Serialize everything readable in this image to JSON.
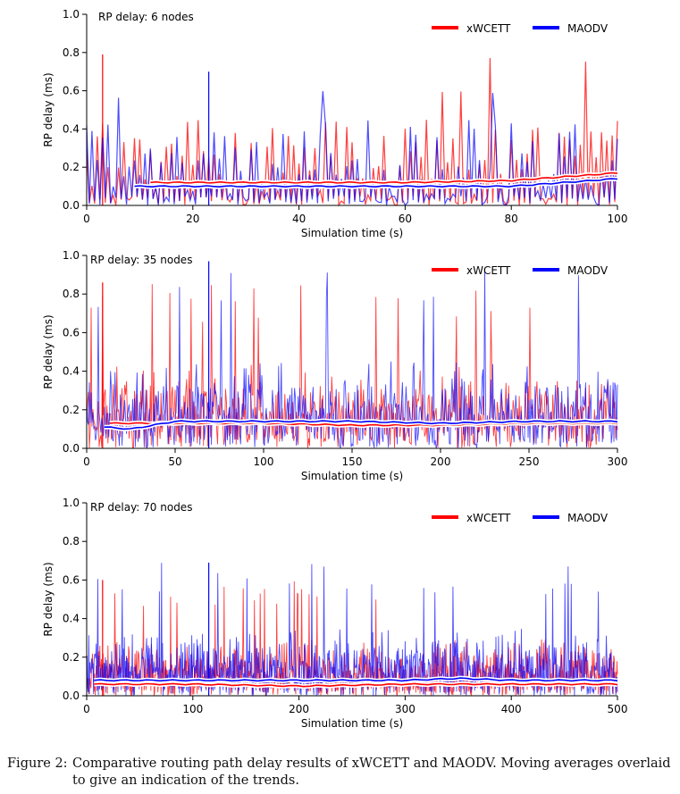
{
  "chart_data": [
    {
      "type": "line",
      "title": "RP delay: 6 nodes",
      "xlabel": "Simulation time (s)",
      "ylabel": "RP delay (ms)",
      "xlim": [
        0,
        100
      ],
      "ylim": [
        0,
        1.0
      ],
      "xticks": [
        0,
        20,
        40,
        60,
        80,
        100
      ],
      "yticks": [
        "0.0",
        "0.2",
        "0.4",
        "0.6",
        "0.8",
        "1.0"
      ],
      "legend": [
        "xWCETT",
        "MAODV"
      ],
      "legend_position": "top-right",
      "grid": false,
      "series": [
        {
          "name": "xWCETT",
          "color": "#ff0000",
          "spike_peak": 0.79,
          "typical_max": 0.45,
          "moving_average": {
            "x": [
              12,
              20,
              40,
              60,
              80,
              90,
              100
            ],
            "y": [
              0.12,
              0.12,
              0.12,
              0.12,
              0.13,
              0.15,
              0.17
            ]
          }
        },
        {
          "name": "MAODV",
          "color": "#0000ff",
          "spike_peak": 0.7,
          "typical_max": 0.45,
          "moving_average": {
            "x": [
              9,
              20,
              40,
              60,
              80,
              90,
              100
            ],
            "y": [
              0.1,
              0.1,
              0.1,
              0.1,
              0.1,
              0.12,
              0.14
            ]
          }
        }
      ]
    },
    {
      "type": "line",
      "title": "RP delay: 35 nodes",
      "xlabel": "Simulation time (s)",
      "ylabel": "RP delay (ms)",
      "xlim": [
        0,
        300
      ],
      "ylim": [
        0,
        1.0
      ],
      "xticks": [
        0,
        50,
        100,
        150,
        200,
        250,
        300
      ],
      "yticks": [
        "0.0",
        "0.2",
        "0.4",
        "0.6",
        "0.8",
        "1.0"
      ],
      "legend": [
        "xWCETT",
        "MAODV"
      ],
      "legend_position": "top-right",
      "grid": false,
      "series": [
        {
          "name": "xWCETT",
          "color": "#ff0000",
          "spike_peak": 0.86,
          "typical_max": 0.45,
          "moving_average": {
            "x": [
              13,
              50,
              100,
              150,
              200,
              250,
              300
            ],
            "y": [
              0.13,
              0.13,
              0.13,
              0.12,
              0.12,
              0.13,
              0.13
            ]
          }
        },
        {
          "name": "MAODV",
          "color": "#0000ff",
          "spike_peak": 0.97,
          "typical_max": 0.5,
          "moving_average": {
            "x": [
              10,
              25,
              50,
              100,
              150,
              200,
              250,
              300
            ],
            "y": [
              0.11,
              0.1,
              0.14,
              0.14,
              0.14,
              0.13,
              0.14,
              0.14
            ]
          }
        }
      ]
    },
    {
      "type": "line",
      "title": "RP delay: 70 nodes",
      "xlabel": "Simulation time (s)",
      "ylabel": "RP delay (ms)",
      "xlim": [
        0,
        500
      ],
      "ylim": [
        0,
        1.0
      ],
      "xticks": [
        0,
        100,
        200,
        300,
        400,
        500
      ],
      "yticks": [
        "0.0",
        "0.2",
        "0.4",
        "0.6",
        "0.8",
        "1.0"
      ],
      "legend": [
        "xWCETT",
        "MAODV"
      ],
      "legend_position": "top-right",
      "grid": false,
      "series": [
        {
          "name": "xWCETT",
          "color": "#ff0000",
          "spike_peak": 0.6,
          "typical_max": 0.3,
          "moving_average": {
            "x": [
              7,
              100,
              200,
              300,
              400,
              500
            ],
            "y": [
              0.06,
              0.06,
              0.05,
              0.06,
              0.06,
              0.06
            ]
          }
        },
        {
          "name": "MAODV",
          "color": "#0000ff",
          "spike_peak": 0.69,
          "typical_max": 0.35,
          "moving_average": {
            "x": [
              7,
              100,
              200,
              300,
              350,
              400,
              500
            ],
            "y": [
              0.08,
              0.08,
              0.08,
              0.08,
              0.09,
              0.08,
              0.08
            ]
          }
        }
      ]
    }
  ],
  "caption": {
    "label": "Figure 2:",
    "line1": "Comparative routing path delay results of xWCETT and MAODV. Moving averages overlaid",
    "line2": "to give an indication of the trends."
  }
}
